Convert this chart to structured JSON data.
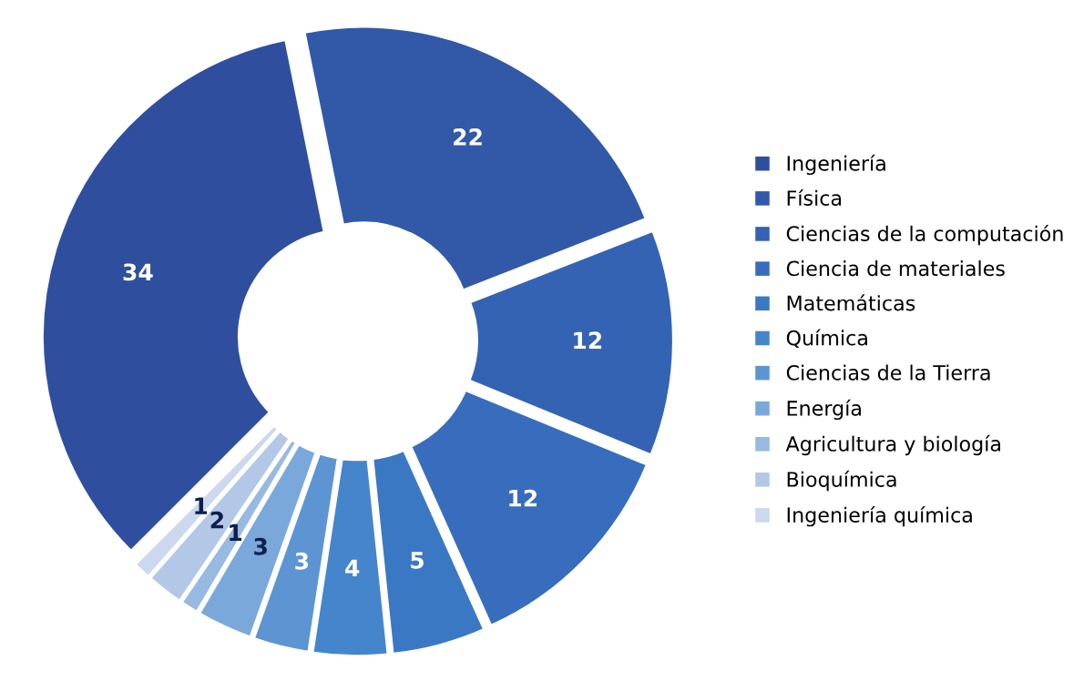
{
  "chart_data": {
    "type": "donut",
    "categories": [
      "Ingeniería",
      "Física",
      "Ciencias de la computación",
      "Ciencia de materiales",
      "Matemáticas",
      "Química",
      "Ciencias de la Tierra",
      "Energía",
      "Agricultura y biología",
      "Bioquímica",
      "Ingeniería química"
    ],
    "values": [
      34,
      22,
      12,
      12,
      5,
      4,
      3,
      3,
      1,
      2,
      1
    ],
    "colors": [
      "#2f4f9e",
      "#3258a8",
      "#3463b3",
      "#376dbc",
      "#3b78c4",
      "#4585cb",
      "#5c95d2",
      "#7aa8da",
      "#98b9e0",
      "#b2c8e6",
      "#cbd8ed"
    ],
    "data_labels": true,
    "legend": "right"
  }
}
